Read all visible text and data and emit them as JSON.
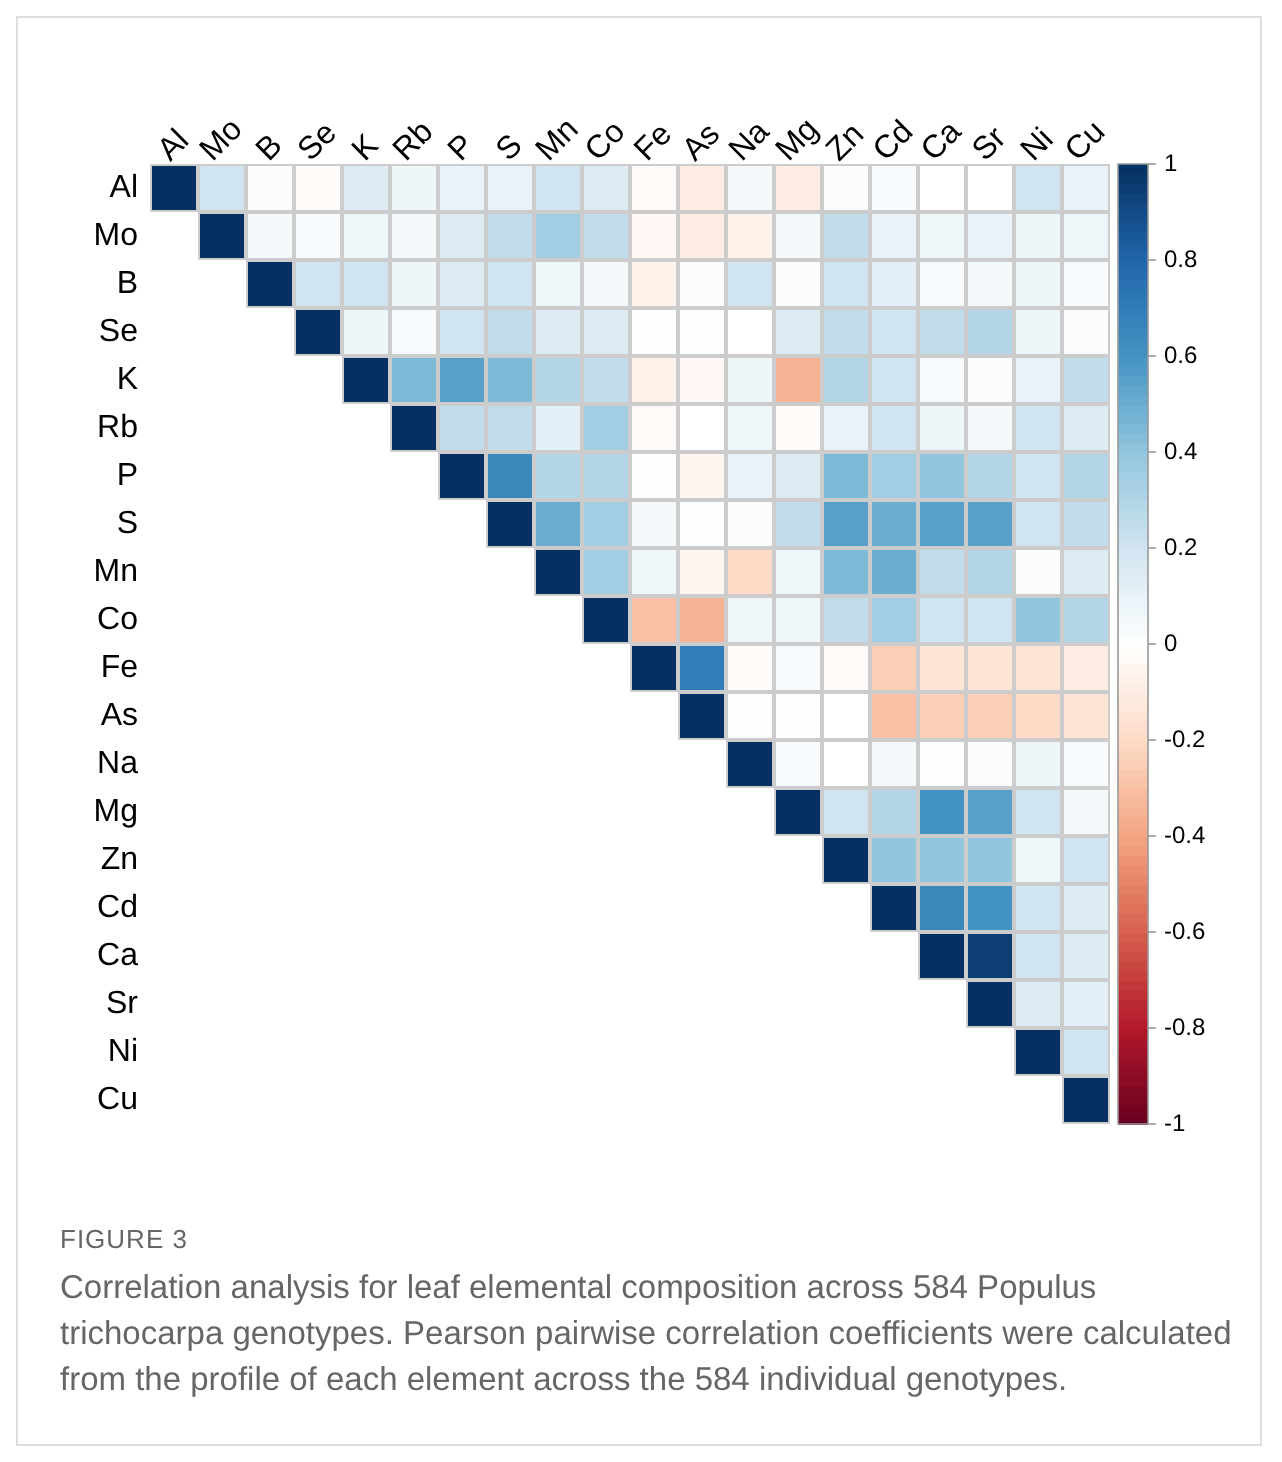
{
  "chart_data": {
    "type": "heatmap",
    "categories": [
      "Al",
      "Mo",
      "B",
      "Se",
      "K",
      "Rb",
      "P",
      "S",
      "Mn",
      "Co",
      "Fe",
      "As",
      "Na",
      "Mg",
      "Zn",
      "Cd",
      "Ca",
      "Sr",
      "Ni",
      "Cu"
    ],
    "y_categories": [
      "Al",
      "Mo",
      "B",
      "Se",
      "K",
      "Rb",
      "P",
      "S",
      "Mn",
      "Co",
      "Fe",
      "As",
      "Na",
      "Mg",
      "Zn",
      "Cd",
      "Ca",
      "Sr",
      "Ni",
      "Cu"
    ],
    "cells": [
      [
        1,
        0.2,
        0.02,
        -0.02,
        0.15,
        0.08,
        0.1,
        0.1,
        0.2,
        0.15,
        -0.03,
        -0.1,
        0.05,
        -0.1,
        0.02,
        0.03,
        0,
        0,
        0.2,
        0.1
      ],
      [
        null,
        1,
        0.05,
        0.03,
        0.07,
        0.05,
        0.15,
        0.25,
        0.35,
        0.25,
        -0.04,
        -0.1,
        -0.07,
        0.05,
        0.25,
        0.1,
        0.07,
        0.1,
        0.08,
        0.07
      ],
      [
        null,
        null,
        1,
        0.2,
        0.2,
        0.08,
        0.15,
        0.2,
        0.07,
        0.05,
        -0.07,
        0.02,
        0.2,
        0.02,
        0.2,
        0.12,
        0.03,
        0.05,
        0.08,
        0.03
      ],
      [
        null,
        null,
        null,
        1,
        0.08,
        0.04,
        0.2,
        0.25,
        0.15,
        0.15,
        0.01,
        0.01,
        0,
        0.15,
        0.25,
        0.2,
        0.25,
        0.3,
        0.08,
        0.02
      ],
      [
        null,
        null,
        null,
        null,
        1,
        0.45,
        0.55,
        0.45,
        0.3,
        0.25,
        -0.08,
        -0.04,
        0.08,
        -0.35,
        0.3,
        0.2,
        0.03,
        0.02,
        0.1,
        0.25
      ],
      [
        null,
        null,
        null,
        null,
        null,
        1,
        0.25,
        0.25,
        0.12,
        0.35,
        -0.03,
        0,
        0.07,
        -0.02,
        0.1,
        0.2,
        0.08,
        0.05,
        0.2,
        0.15
      ],
      [
        null,
        null,
        null,
        null,
        null,
        null,
        1,
        0.65,
        0.3,
        0.3,
        0.01,
        -0.05,
        0.1,
        0.15,
        0.45,
        0.35,
        0.4,
        0.3,
        0.2,
        0.3
      ],
      [
        null,
        null,
        null,
        null,
        null,
        null,
        null,
        1,
        0.5,
        0.35,
        0.05,
        0.01,
        0.02,
        0.25,
        0.55,
        0.5,
        0.55,
        0.55,
        0.2,
        0.25
      ],
      [
        null,
        null,
        null,
        null,
        null,
        null,
        null,
        null,
        1,
        0.35,
        0.07,
        -0.05,
        -0.2,
        0.07,
        0.45,
        0.5,
        0.25,
        0.3,
        0.02,
        0.15
      ],
      [
        null,
        null,
        null,
        null,
        null,
        null,
        null,
        null,
        null,
        1,
        -0.3,
        -0.35,
        0.07,
        0.07,
        0.25,
        0.35,
        0.2,
        0.2,
        0.4,
        0.3
      ],
      [
        null,
        null,
        null,
        null,
        null,
        null,
        null,
        null,
        null,
        null,
        1,
        0.7,
        -0.02,
        0.04,
        -0.03,
        -0.25,
        -0.15,
        -0.15,
        -0.15,
        -0.1
      ],
      [
        null,
        null,
        null,
        null,
        null,
        null,
        null,
        null,
        null,
        null,
        null,
        1,
        -0.01,
        0.01,
        0,
        -0.3,
        -0.25,
        -0.25,
        -0.2,
        -0.15
      ],
      [
        null,
        null,
        null,
        null,
        null,
        null,
        null,
        null,
        null,
        null,
        null,
        null,
        1,
        0.03,
        0,
        0.05,
        0.01,
        0.02,
        0.08,
        0.04
      ],
      [
        null,
        null,
        null,
        null,
        null,
        null,
        null,
        null,
        null,
        null,
        null,
        null,
        null,
        1,
        0.2,
        0.3,
        0.6,
        0.55,
        0.2,
        0.05
      ],
      [
        null,
        null,
        null,
        null,
        null,
        null,
        null,
        null,
        null,
        null,
        null,
        null,
        null,
        null,
        1,
        0.4,
        0.4,
        0.4,
        0.07,
        0.2
      ],
      [
        null,
        null,
        null,
        null,
        null,
        null,
        null,
        null,
        null,
        null,
        null,
        null,
        null,
        null,
        null,
        1,
        0.65,
        0.6,
        0.2,
        0.15
      ],
      [
        null,
        null,
        null,
        null,
        null,
        null,
        null,
        null,
        null,
        null,
        null,
        null,
        null,
        null,
        null,
        null,
        1,
        0.95,
        0.2,
        0.15
      ],
      [
        null,
        null,
        null,
        null,
        null,
        null,
        null,
        null,
        null,
        null,
        null,
        null,
        null,
        null,
        null,
        null,
        null,
        1,
        0.15,
        0.12
      ],
      [
        null,
        null,
        null,
        null,
        null,
        null,
        null,
        null,
        null,
        null,
        null,
        null,
        null,
        null,
        null,
        null,
        null,
        null,
        1,
        0.2
      ],
      [
        null,
        null,
        null,
        null,
        null,
        null,
        null,
        null,
        null,
        null,
        null,
        null,
        null,
        null,
        null,
        null,
        null,
        null,
        null,
        1
      ]
    ],
    "clim": [
      -1,
      1
    ],
    "cticks": [
      1,
      0.8,
      0.6,
      0.4,
      0.2,
      0,
      -0.2,
      -0.4,
      -0.6,
      -0.8,
      -1
    ],
    "annotations": [
      "FIGURE 3",
      "Correlation analysis for leaf elemental composition across 584 Populus trichocarpa genotypes. Pearson pairwise correlation coefficients were calculated from the profile of each element across the 584 individual genotypes."
    ]
  }
}
